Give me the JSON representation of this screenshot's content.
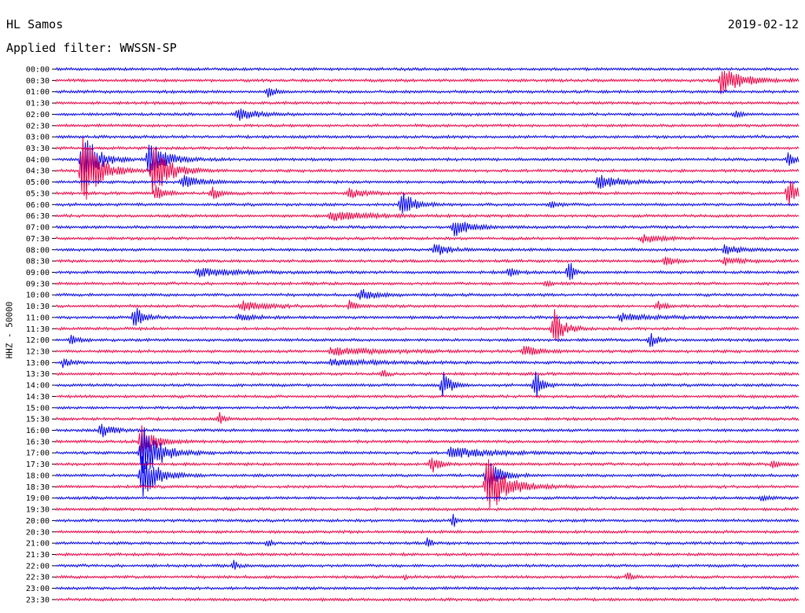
{
  "header": {
    "station": "HL Samos",
    "date": "2019-02-12",
    "filter": "Applied filter: WWSSN-SP"
  },
  "colors": {
    "a": "#0000ee",
    "b": "#ee0044"
  },
  "chart_data": {
    "type": "line",
    "title": "HL Samos",
    "ylabel": "HHZ - 50000",
    "row_labels": [
      "00:00",
      "00:30",
      "01:00",
      "01:30",
      "02:00",
      "02:30",
      "03:00",
      "03:30",
      "04:00",
      "04:30",
      "05:00",
      "05:30",
      "06:00",
      "06:30",
      "07:00",
      "07:30",
      "08:00",
      "08:30",
      "09:00",
      "09:30",
      "10:00",
      "10:30",
      "11:00",
      "11:30",
      "12:00",
      "12:30",
      "13:00",
      "13:30",
      "14:00",
      "14:30",
      "15:00",
      "15:30",
      "16:00",
      "16:30",
      "17:00",
      "17:30",
      "18:00",
      "18:30",
      "19:00",
      "19:30",
      "20:00",
      "20:30",
      "21:00",
      "21:30",
      "22:00",
      "22:30",
      "23:00",
      "23:30"
    ],
    "events": [
      {
        "row": 1,
        "x": 0.895,
        "amp": 16,
        "dur": 0.03
      },
      {
        "row": 2,
        "x": 0.285,
        "amp": 7,
        "dur": 0.008
      },
      {
        "row": 4,
        "x": 0.245,
        "amp": 10,
        "dur": 0.02
      },
      {
        "row": 4,
        "x": 0.915,
        "amp": 5,
        "dur": 0.006
      },
      {
        "row": 8,
        "x": 0.035,
        "amp": 40,
        "dur": 0.018
      },
      {
        "row": 8,
        "x": 0.125,
        "amp": 26,
        "dur": 0.02
      },
      {
        "row": 8,
        "x": 0.985,
        "amp": 8,
        "dur": 0.015
      },
      {
        "row": 9,
        "x": 0.035,
        "amp": 55,
        "dur": 0.02
      },
      {
        "row": 9,
        "x": 0.13,
        "amp": 35,
        "dur": 0.02
      },
      {
        "row": 10,
        "x": 0.17,
        "amp": 10,
        "dur": 0.02
      },
      {
        "row": 10,
        "x": 0.73,
        "amp": 10,
        "dur": 0.025
      },
      {
        "row": 11,
        "x": 0.135,
        "amp": 12,
        "dur": 0.01
      },
      {
        "row": 11,
        "x": 0.21,
        "amp": 9,
        "dur": 0.01
      },
      {
        "row": 11,
        "x": 0.395,
        "amp": 6,
        "dur": 0.02
      },
      {
        "row": 11,
        "x": 0.985,
        "amp": 22,
        "dur": 0.012
      },
      {
        "row": 12,
        "x": 0.465,
        "amp": 20,
        "dur": 0.015
      },
      {
        "row": 12,
        "x": 0.665,
        "amp": 5,
        "dur": 0.01
      },
      {
        "row": 13,
        "x": 0.37,
        "amp": 6,
        "dur": 0.05
      },
      {
        "row": 14,
        "x": 0.535,
        "amp": 12,
        "dur": 0.02
      },
      {
        "row": 15,
        "x": 0.79,
        "amp": 6,
        "dur": 0.02
      },
      {
        "row": 16,
        "x": 0.51,
        "amp": 7,
        "dur": 0.02
      },
      {
        "row": 16,
        "x": 0.9,
        "amp": 6,
        "dur": 0.02
      },
      {
        "row": 17,
        "x": 0.82,
        "amp": 8,
        "dur": 0.01
      },
      {
        "row": 17,
        "x": 0.9,
        "amp": 5,
        "dur": 0.02
      },
      {
        "row": 18,
        "x": 0.19,
        "amp": 5,
        "dur": 0.05
      },
      {
        "row": 18,
        "x": 0.61,
        "amp": 8,
        "dur": 0.01
      },
      {
        "row": 18,
        "x": 0.69,
        "amp": 22,
        "dur": 0.005
      },
      {
        "row": 19,
        "x": 0.66,
        "amp": 6,
        "dur": 0.005
      },
      {
        "row": 20,
        "x": 0.41,
        "amp": 7,
        "dur": 0.02
      },
      {
        "row": 21,
        "x": 0.25,
        "amp": 6,
        "dur": 0.03
      },
      {
        "row": 21,
        "x": 0.395,
        "amp": 7,
        "dur": 0.01
      },
      {
        "row": 21,
        "x": 0.81,
        "amp": 6,
        "dur": 0.01
      },
      {
        "row": 22,
        "x": 0.105,
        "amp": 16,
        "dur": 0.012
      },
      {
        "row": 22,
        "x": 0.245,
        "amp": 5,
        "dur": 0.02
      },
      {
        "row": 22,
        "x": 0.76,
        "amp": 5,
        "dur": 0.04
      },
      {
        "row": 23,
        "x": 0.67,
        "amp": 26,
        "dur": 0.012
      },
      {
        "row": 24,
        "x": 0.02,
        "amp": 6,
        "dur": 0.01
      },
      {
        "row": 24,
        "x": 0.8,
        "amp": 10,
        "dur": 0.008
      },
      {
        "row": 25,
        "x": 0.37,
        "amp": 5,
        "dur": 0.06
      },
      {
        "row": 25,
        "x": 0.63,
        "amp": 7,
        "dur": 0.02
      },
      {
        "row": 26,
        "x": 0.01,
        "amp": 7,
        "dur": 0.01
      },
      {
        "row": 26,
        "x": 0.37,
        "amp": 4,
        "dur": 0.06
      },
      {
        "row": 27,
        "x": 0.44,
        "amp": 6,
        "dur": 0.005
      },
      {
        "row": 28,
        "x": 0.52,
        "amp": 20,
        "dur": 0.01
      },
      {
        "row": 28,
        "x": 0.645,
        "amp": 22,
        "dur": 0.008
      },
      {
        "row": 31,
        "x": 0.22,
        "amp": 10,
        "dur": 0.005
      },
      {
        "row": 32,
        "x": 0.06,
        "amp": 10,
        "dur": 0.015
      },
      {
        "row": 33,
        "x": 0.115,
        "amp": 30,
        "dur": 0.015
      },
      {
        "row": 34,
        "x": 0.115,
        "amp": 45,
        "dur": 0.02
      },
      {
        "row": 34,
        "x": 0.53,
        "amp": 7,
        "dur": 0.05
      },
      {
        "row": 35,
        "x": 0.505,
        "amp": 12,
        "dur": 0.01
      },
      {
        "row": 35,
        "x": 0.965,
        "amp": 4,
        "dur": 0.01
      },
      {
        "row": 36,
        "x": 0.115,
        "amp": 30,
        "dur": 0.02
      },
      {
        "row": 36,
        "x": 0.58,
        "amp": 22,
        "dur": 0.015
      },
      {
        "row": 37,
        "x": 0.58,
        "amp": 40,
        "dur": 0.025
      },
      {
        "row": 38,
        "x": 0.95,
        "amp": 4,
        "dur": 0.01
      },
      {
        "row": 40,
        "x": 0.535,
        "amp": 10,
        "dur": 0.004
      },
      {
        "row": 42,
        "x": 0.285,
        "amp": 6,
        "dur": 0.005
      },
      {
        "row": 42,
        "x": 0.5,
        "amp": 6,
        "dur": 0.006
      },
      {
        "row": 44,
        "x": 0.24,
        "amp": 7,
        "dur": 0.004
      },
      {
        "row": 45,
        "x": 0.77,
        "amp": 7,
        "dur": 0.005
      },
      {
        "row": 45,
        "x": 0.47,
        "amp": 3,
        "dur": 0.004
      }
    ]
  }
}
